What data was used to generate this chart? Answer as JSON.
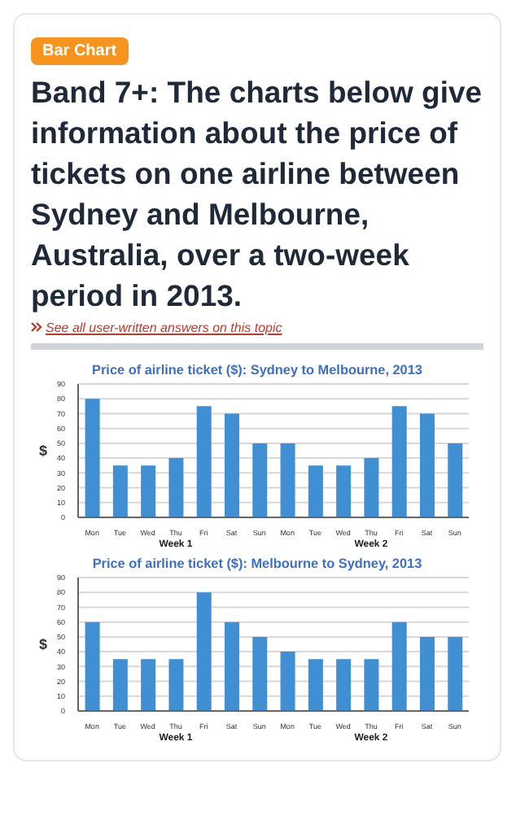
{
  "chart_data": [
    {
      "type": "other",
      "title": "Band 7+: The charts below give information about the price of tickets on one airline between Sydney and Melbourne, Australia, over a two-week period in 2013.",
      "annotations": [
        "Bar Chart",
        "See all user-written answers on this topic"
      ]
    },
    {
      "type": "bar",
      "title": "Price of airline ticket ($): Sydney to Melbourne, 2013",
      "ylabel": "$",
      "categories": [
        "Mon",
        "Tue",
        "Wed",
        "Thu",
        "Fri",
        "Sat",
        "Sun",
        "Mon",
        "Tue",
        "Wed",
        "Thu",
        "Fri",
        "Sat",
        "Sun"
      ],
      "values": [
        80,
        35,
        35,
        40,
        75,
        70,
        50,
        50,
        35,
        35,
        40,
        75,
        70,
        50
      ],
      "color": "#3f8fd2",
      "ylim": [
        0,
        90
      ],
      "yticks": [
        0,
        10,
        20,
        30,
        40,
        50,
        60,
        70,
        80,
        90
      ],
      "grid": "y",
      "annotations": [
        "Week 1",
        "Week 2"
      ]
    },
    {
      "type": "bar",
      "title": "Price of airline ticket ($): Melbourne to Sydney, 2013",
      "ylabel": "$",
      "categories": [
        "Mon",
        "Tue",
        "Wed",
        "Thu",
        "Fri",
        "Sat",
        "Sun",
        "Mon",
        "Tue",
        "Wed",
        "Thu",
        "Fri",
        "Sat",
        "Sun"
      ],
      "values": [
        60,
        35,
        35,
        35,
        80,
        60,
        50,
        40,
        35,
        35,
        35,
        60,
        50,
        50
      ],
      "color": "#3f8fd2",
      "ylim": [
        0,
        90
      ],
      "yticks": [
        0,
        10,
        20,
        30,
        40,
        50,
        60,
        70,
        80,
        90
      ],
      "grid": "y",
      "annotations": [
        "Week 1",
        "Week 2"
      ]
    }
  ]
}
